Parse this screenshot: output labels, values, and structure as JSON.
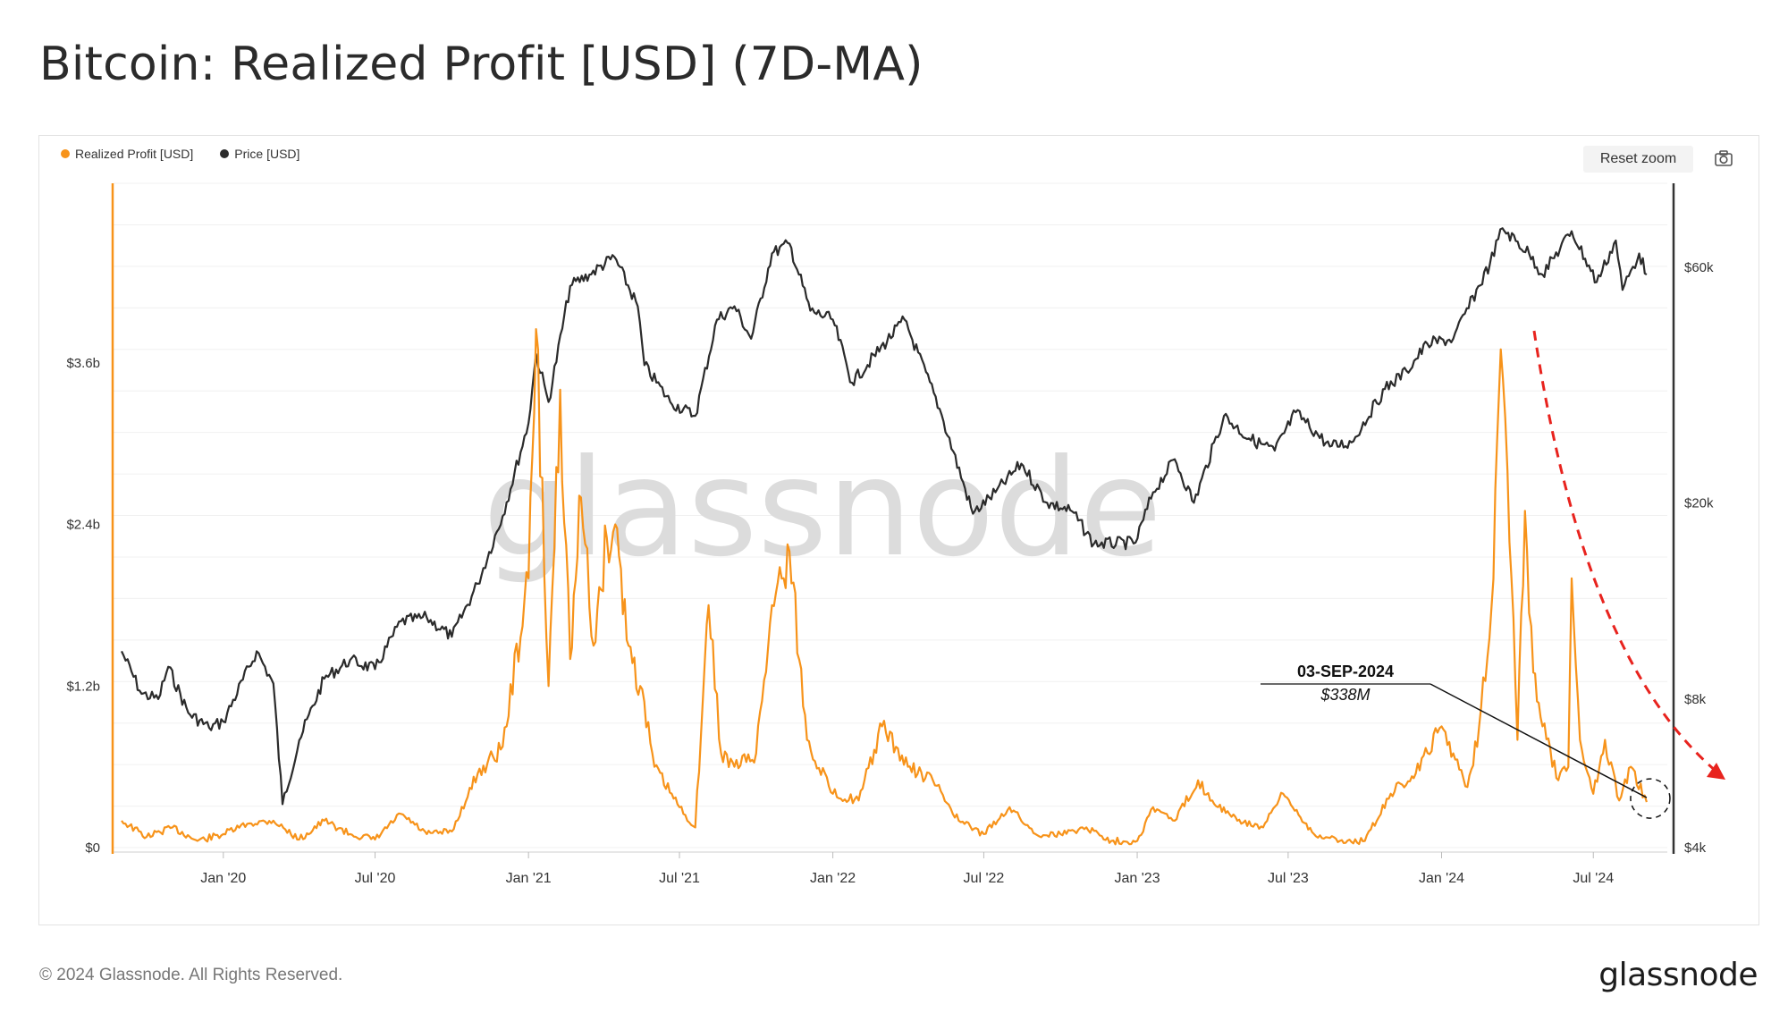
{
  "page": {
    "title": "Bitcoin: Realized Profit [USD] (7D-MA)",
    "reset_zoom_label": "Reset zoom",
    "watermark": "glassnode",
    "footer_copyright": "© 2024 Glassnode. All Rights Reserved.",
    "footer_logo": "glassnode",
    "camera_icon": "camera-icon"
  },
  "chart_data": {
    "type": "line",
    "legend": [
      {
        "name": "Realized Profit [USD]",
        "color": "#f7931a"
      },
      {
        "name": "Price [USD]",
        "color": "#2b2b2b"
      }
    ],
    "x_ticks": [
      "Jan '20",
      "Jul '20",
      "Jan '21",
      "Jul '21",
      "Jan '22",
      "Jul '22",
      "Jan '23",
      "Jul '23",
      "Jan '24",
      "Jul '24"
    ],
    "y_left_ticks": [
      "$0",
      "$1.2b",
      "$2.4b",
      "$3.6b"
    ],
    "y_right_ticks": [
      "$4k",
      "$8k",
      "$20k",
      "$60k"
    ],
    "y_left_range": [
      0,
      4.8
    ],
    "y_left_unit": "billions USD",
    "y_right_scale": "log",
    "x_range": [
      "2019-09",
      "2024-09"
    ],
    "annotation": {
      "date": "03-SEP-2024",
      "value": "$338M"
    },
    "series": [
      {
        "name": "Realized Profit [USD]",
        "color": "#f7931a",
        "points": [
          [
            "2019-09-01",
            0.2
          ],
          [
            "2019-10-01",
            0.08
          ],
          [
            "2019-11-01",
            0.15
          ],
          [
            "2019-12-01",
            0.05
          ],
          [
            "2020-01-01",
            0.1
          ],
          [
            "2020-02-01",
            0.18
          ],
          [
            "2020-03-01",
            0.2
          ],
          [
            "2020-04-01",
            0.06
          ],
          [
            "2020-05-01",
            0.2
          ],
          [
            "2020-06-01",
            0.1
          ],
          [
            "2020-07-01",
            0.06
          ],
          [
            "2020-08-01",
            0.25
          ],
          [
            "2020-09-01",
            0.1
          ],
          [
            "2020-10-01",
            0.12
          ],
          [
            "2020-11-01",
            0.55
          ],
          [
            "2020-12-01",
            0.75
          ],
          [
            "2021-01-01",
            2.0
          ],
          [
            "2021-01-10",
            3.85
          ],
          [
            "2021-01-25",
            1.2
          ],
          [
            "2021-02-08",
            3.4
          ],
          [
            "2021-02-20",
            1.4
          ],
          [
            "2021-03-05",
            2.6
          ],
          [
            "2021-03-20",
            1.5
          ],
          [
            "2021-04-05",
            2.3
          ],
          [
            "2021-04-15",
            2.4
          ],
          [
            "2021-05-01",
            1.5
          ],
          [
            "2021-05-15",
            1.2
          ],
          [
            "2021-06-01",
            0.6
          ],
          [
            "2021-07-01",
            0.3
          ],
          [
            "2021-07-20",
            0.15
          ],
          [
            "2021-08-05",
            1.8
          ],
          [
            "2021-08-20",
            0.7
          ],
          [
            "2021-09-05",
            0.6
          ],
          [
            "2021-10-01",
            0.7
          ],
          [
            "2021-10-20",
            1.8
          ],
          [
            "2021-11-10",
            2.2
          ],
          [
            "2021-12-01",
            0.8
          ],
          [
            "2022-01-01",
            0.4
          ],
          [
            "2022-02-01",
            0.35
          ],
          [
            "2022-03-01",
            0.9
          ],
          [
            "2022-04-01",
            0.6
          ],
          [
            "2022-05-01",
            0.5
          ],
          [
            "2022-06-01",
            0.2
          ],
          [
            "2022-07-01",
            0.1
          ],
          [
            "2022-08-01",
            0.3
          ],
          [
            "2022-09-01",
            0.1
          ],
          [
            "2022-10-01",
            0.1
          ],
          [
            "2022-11-01",
            0.15
          ],
          [
            "2022-12-01",
            0.05
          ],
          [
            "2023-01-01",
            0.05
          ],
          [
            "2023-01-20",
            0.3
          ],
          [
            "2023-02-15",
            0.2
          ],
          [
            "2023-03-15",
            0.5
          ],
          [
            "2023-04-01",
            0.35
          ],
          [
            "2023-05-01",
            0.2
          ],
          [
            "2023-06-01",
            0.15
          ],
          [
            "2023-06-25",
            0.4
          ],
          [
            "2023-08-01",
            0.1
          ],
          [
            "2023-09-01",
            0.05
          ],
          [
            "2023-10-01",
            0.05
          ],
          [
            "2023-11-01",
            0.4
          ],
          [
            "2023-12-01",
            0.55
          ],
          [
            "2024-01-01",
            0.9
          ],
          [
            "2024-01-15",
            0.7
          ],
          [
            "2024-02-01",
            0.45
          ],
          [
            "2024-02-15",
            0.9
          ],
          [
            "2024-03-01",
            1.8
          ],
          [
            "2024-03-12",
            3.7
          ],
          [
            "2024-03-20",
            2.8
          ],
          [
            "2024-04-01",
            0.8
          ],
          [
            "2024-04-10",
            2.5
          ],
          [
            "2024-04-20",
            1.3
          ],
          [
            "2024-05-01",
            0.9
          ],
          [
            "2024-05-20",
            0.5
          ],
          [
            "2024-06-01",
            0.6
          ],
          [
            "2024-06-05",
            2.0
          ],
          [
            "2024-06-15",
            0.8
          ],
          [
            "2024-07-01",
            0.4
          ],
          [
            "2024-07-15",
            0.8
          ],
          [
            "2024-08-01",
            0.35
          ],
          [
            "2024-08-15",
            0.6
          ],
          [
            "2024-09-03",
            0.338
          ]
        ]
      },
      {
        "name": "Price [USD]",
        "color": "#2b2b2b",
        "points": [
          [
            "2019-09-01",
            10000
          ],
          [
            "2019-09-25",
            8200
          ],
          [
            "2019-10-15",
            8000
          ],
          [
            "2019-10-27",
            9300
          ],
          [
            "2019-11-20",
            7500
          ],
          [
            "2019-12-15",
            7000
          ],
          [
            "2020-01-01",
            7200
          ],
          [
            "2020-02-10",
            10000
          ],
          [
            "2020-03-01",
            8600
          ],
          [
            "2020-03-12",
            4900
          ],
          [
            "2020-04-01",
            6600
          ],
          [
            "2020-05-01",
            8800
          ],
          [
            "2020-06-01",
            9600
          ],
          [
            "2020-07-01",
            9200
          ],
          [
            "2020-08-01",
            11500
          ],
          [
            "2020-09-01",
            11700
          ],
          [
            "2020-10-01",
            10700
          ],
          [
            "2020-11-01",
            13700
          ],
          [
            "2020-12-01",
            18800
          ],
          [
            "2021-01-01",
            29000
          ],
          [
            "2021-01-10",
            40000
          ],
          [
            "2021-01-25",
            32000
          ],
          [
            "2021-02-20",
            55000
          ],
          [
            "2021-03-15",
            58000
          ],
          [
            "2021-04-14",
            63000
          ],
          [
            "2021-05-12",
            50000
          ],
          [
            "2021-05-20",
            38000
          ],
          [
            "2021-06-20",
            32000
          ],
          [
            "2021-07-20",
            30000
          ],
          [
            "2021-08-15",
            47000
          ],
          [
            "2021-09-05",
            50000
          ],
          [
            "2021-09-25",
            43000
          ],
          [
            "2021-10-20",
            64000
          ],
          [
            "2021-11-10",
            67000
          ],
          [
            "2021-12-05",
            49000
          ],
          [
            "2022-01-01",
            47000
          ],
          [
            "2022-01-24",
            35000
          ],
          [
            "2022-03-28",
            47000
          ],
          [
            "2022-05-09",
            31000
          ],
          [
            "2022-06-18",
            19000
          ],
          [
            "2022-07-15",
            21000
          ],
          [
            "2022-08-15",
            24000
          ],
          [
            "2022-09-15",
            20000
          ],
          [
            "2022-10-15",
            19200
          ],
          [
            "2022-11-10",
            16500
          ],
          [
            "2022-12-30",
            16600
          ],
          [
            "2023-01-20",
            21000
          ],
          [
            "2023-02-15",
            24500
          ],
          [
            "2023-03-10",
            20000
          ],
          [
            "2023-04-15",
            30000
          ],
          [
            "2023-05-15",
            27000
          ],
          [
            "2023-06-15",
            25500
          ],
          [
            "2023-07-10",
            30500
          ],
          [
            "2023-08-20",
            26000
          ],
          [
            "2023-09-15",
            26500
          ],
          [
            "2023-10-25",
            34000
          ],
          [
            "2023-11-20",
            37000
          ],
          [
            "2023-12-15",
            42000
          ],
          [
            "2024-01-15",
            43000
          ],
          [
            "2024-02-28",
            61000
          ],
          [
            "2024-03-14",
            72000
          ],
          [
            "2024-04-15",
            64000
          ],
          [
            "2024-05-01",
            58000
          ],
          [
            "2024-06-05",
            71000
          ],
          [
            "2024-07-05",
            56000
          ],
          [
            "2024-07-28",
            68000
          ],
          [
            "2024-08-05",
            54000
          ],
          [
            "2024-08-25",
            64000
          ],
          [
            "2024-09-03",
            58000
          ]
        ]
      }
    ]
  }
}
